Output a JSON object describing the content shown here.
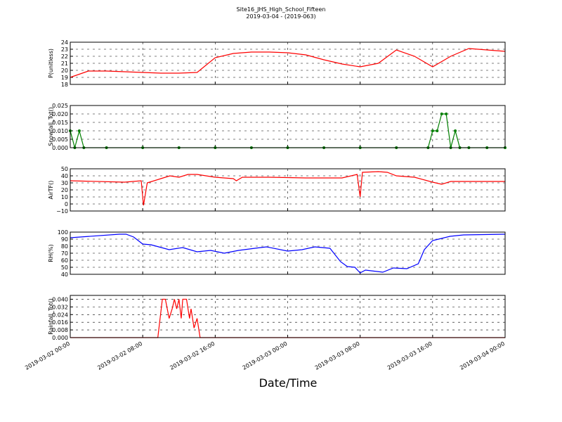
{
  "title": "Site16_JHS_High_School_Fifteen",
  "subtitle": "2019-03-04 - (2019-063)",
  "chart_data": [
    {
      "type": "line",
      "ylabel": "P(unitless)",
      "color": "#ff0000",
      "ylim": [
        18,
        24
      ],
      "yticks": [
        18,
        19,
        20,
        21,
        22,
        23,
        24
      ],
      "grid": true,
      "x": [
        "2019-03-02 00:00",
        "2019-03-02 02:00",
        "2019-03-02 04:00",
        "2019-03-02 06:00",
        "2019-03-02 08:00",
        "2019-03-02 10:00",
        "2019-03-02 12:00",
        "2019-03-02 14:00",
        "2019-03-02 16:00",
        "2019-03-02 18:00",
        "2019-03-02 20:00",
        "2019-03-02 22:00",
        "2019-03-03 00:00",
        "2019-03-03 02:00",
        "2019-03-03 04:00",
        "2019-03-03 06:00",
        "2019-03-03 08:00",
        "2019-03-03 10:00",
        "2019-03-03 12:00",
        "2019-03-03 14:00",
        "2019-03-03 16:00",
        "2019-03-03 18:00",
        "2019-03-03 20:00",
        "2019-03-03 22:00",
        "2019-03-04 00:00"
      ],
      "values": [
        19.0,
        19.9,
        19.9,
        19.8,
        19.7,
        19.6,
        19.6,
        19.7,
        21.8,
        22.4,
        22.6,
        22.6,
        22.5,
        22.2,
        21.5,
        20.9,
        20.5,
        21.0,
        22.9,
        22.0,
        20.5,
        22.0,
        23.1,
        22.9,
        22.7
      ]
    },
    {
      "type": "line",
      "ylabel": "Snowfall_Tot()",
      "color": "#007f00",
      "markers": true,
      "ylim": [
        0,
        0.025
      ],
      "grid": true,
      "yticks": [
        {
          "value": 0,
          "label": "0.000"
        },
        {
          "value": 0.005,
          "label": "0.005"
        },
        {
          "value": 0.01,
          "label": "0.010"
        },
        {
          "value": 0.015,
          "label": "0.015"
        },
        {
          "value": 0.02,
          "label": "0.020"
        },
        {
          "value": 0.025,
          "label": "0.025"
        }
      ],
      "x": [
        "2019-03-02 00:00",
        "2019-03-02 00:30",
        "2019-03-02 01:00",
        "2019-03-02 01:30",
        "2019-03-02 04:00",
        "2019-03-02 08:00",
        "2019-03-02 12:00",
        "2019-03-02 16:00",
        "2019-03-02 20:00",
        "2019-03-03 00:00",
        "2019-03-03 04:00",
        "2019-03-03 08:00",
        "2019-03-03 12:00",
        "2019-03-03 15:30",
        "2019-03-03 16:00",
        "2019-03-03 16:30",
        "2019-03-03 17:00",
        "2019-03-03 17:30",
        "2019-03-03 18:00",
        "2019-03-03 18:30",
        "2019-03-03 19:00",
        "2019-03-03 20:00",
        "2019-03-03 22:00",
        "2019-03-04 00:00"
      ],
      "values": [
        0.01,
        0,
        0.01,
        0,
        0,
        0,
        0,
        0,
        0,
        0,
        0,
        0,
        0,
        0,
        0.01,
        0.01,
        0.02,
        0.02,
        0,
        0.01,
        0,
        0,
        0,
        0
      ]
    },
    {
      "type": "line",
      "ylabel": "AirTF()",
      "color": "#ff0000",
      "ylim": [
        -10,
        50
      ],
      "grid": true,
      "yticks": [
        {
          "value": -10,
          "label": "−10"
        },
        0,
        10,
        20,
        30,
        40,
        50
      ],
      "x": [
        "2019-03-02 00:00",
        "2019-03-02 06:00",
        "2019-03-02 07:50",
        "2019-03-02 08:05",
        "2019-03-02 08:30",
        "2019-03-02 10:00",
        "2019-03-02 11:00",
        "2019-03-02 12:00",
        "2019-03-02 13:00",
        "2019-03-02 14:00",
        "2019-03-02 16:00",
        "2019-03-02 18:00",
        "2019-03-02 18:20",
        "2019-03-02 19:00",
        "2019-03-02 22:00",
        "2019-03-03 02:00",
        "2019-03-03 06:00",
        "2019-03-03 07:40",
        "2019-03-03 08:00",
        "2019-03-03 08:15",
        "2019-03-03 10:00",
        "2019-03-03 11:00",
        "2019-03-03 12:00",
        "2019-03-03 14:00",
        "2019-03-03 16:00",
        "2019-03-03 17:00",
        "2019-03-03 18:00",
        "2019-03-04 00:00"
      ],
      "values": [
        33,
        31,
        33,
        -2,
        30,
        36,
        40,
        38,
        42,
        42,
        38,
        36,
        33,
        38,
        38,
        37,
        37,
        42,
        10,
        45,
        46,
        45,
        40,
        38,
        31,
        28,
        32,
        32
      ]
    },
    {
      "type": "line",
      "ylabel": "RH(%)",
      "color": "#0000ff",
      "ylim": [
        40,
        100
      ],
      "yticks": [
        40,
        50,
        60,
        70,
        80,
        90,
        100
      ],
      "grid": true,
      "x": [
        "2019-03-02 00:00",
        "2019-03-02 05:25",
        "2019-03-02 06:10",
        "2019-03-02 07:00",
        "2019-03-02 08:00",
        "2019-03-02 08:55",
        "2019-03-02 10:55",
        "2019-03-02 12:25",
        "2019-03-02 14:00",
        "2019-03-02 15:30",
        "2019-03-02 17:00",
        "2019-03-02 18:35",
        "2019-03-02 21:00",
        "2019-03-02 21:40",
        "2019-03-03 00:00",
        "2019-03-03 01:35",
        "2019-03-03 03:00",
        "2019-03-03 04:40",
        "2019-03-03 05:50",
        "2019-03-03 06:35",
        "2019-03-03 07:25",
        "2019-03-03 08:00",
        "2019-03-03 08:35",
        "2019-03-03 10:30",
        "2019-03-03 11:40",
        "2019-03-03 13:10",
        "2019-03-03 14:25",
        "2019-03-03 15:05",
        "2019-03-03 16:00",
        "2019-03-03 16:40",
        "2019-03-03 17:55",
        "2019-03-03 19:25",
        "2019-03-04 00:00"
      ],
      "values": [
        92,
        97,
        97,
        93,
        83,
        82,
        75,
        78,
        72,
        74,
        70,
        74,
        78,
        79,
        73,
        75,
        79,
        77,
        58,
        51,
        50,
        42,
        46,
        43,
        49,
        48,
        55,
        75,
        88,
        90,
        94,
        96,
        97
      ]
    },
    {
      "type": "line",
      "ylabel": "Rainfall_Tot()",
      "color": "#ff0000",
      "ylim": [
        0,
        0.044
      ],
      "grid": true,
      "yticks": [
        {
          "value": 0,
          "label": "0.000"
        },
        {
          "value": 0.008,
          "label": "0.008"
        },
        {
          "value": 0.016,
          "label": "0.016"
        },
        {
          "value": 0.024,
          "label": "0.024"
        },
        {
          "value": 0.032,
          "label": "0.032"
        },
        {
          "value": 0.04,
          "label": "0.040"
        }
      ],
      "xlabel": "Date/Time",
      "xticks": [
        "2019-03-02 00:00",
        "2019-03-02 08:00",
        "2019-03-02 16:00",
        "2019-03-03 00:00",
        "2019-03-03 08:00",
        "2019-03-03 16:00",
        "2019-03-04 00:00"
      ],
      "xlim": [
        "2019-03-02 00:00",
        "2019-03-04 00:00"
      ],
      "x": [
        "2019-03-02 00:00",
        "2019-03-02 09:40",
        "2019-03-02 10:10",
        "2019-03-02 10:30",
        "2019-03-02 10:55",
        "2019-03-02 11:15",
        "2019-03-02 11:30",
        "2019-03-02 11:45",
        "2019-03-02 12:00",
        "2019-03-02 12:15",
        "2019-03-02 12:25",
        "2019-03-02 12:50",
        "2019-03-02 13:10",
        "2019-03-02 13:20",
        "2019-03-02 13:40",
        "2019-03-02 14:00",
        "2019-03-02 14:20",
        "2019-03-04 00:00"
      ],
      "values": [
        0,
        0,
        0.04,
        0.04,
        0.02,
        0.03,
        0.04,
        0.03,
        0.04,
        0.02,
        0.04,
        0.04,
        0.02,
        0.03,
        0.01,
        0.02,
        0,
        0
      ]
    }
  ]
}
